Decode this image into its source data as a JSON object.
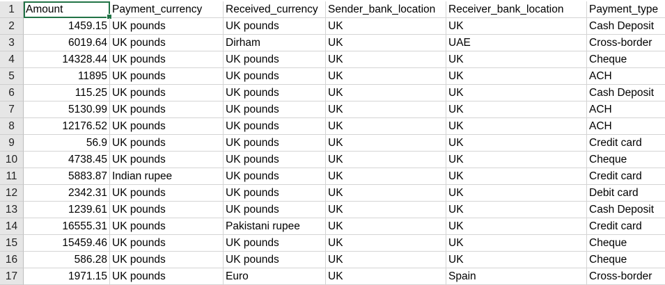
{
  "sheet": {
    "header_row_number": "1",
    "headers": [
      "Amount",
      "Payment_currency",
      "Received_currency",
      "Sender_bank_location",
      "Receiver_bank_location",
      "Payment_type"
    ],
    "rows": [
      {
        "n": "2",
        "cells": [
          "1459.15",
          "UK pounds",
          "UK pounds",
          "UK",
          "UK",
          "Cash Deposit"
        ]
      },
      {
        "n": "3",
        "cells": [
          "6019.64",
          "UK pounds",
          "Dirham",
          "UK",
          "UAE",
          "Cross-border"
        ]
      },
      {
        "n": "4",
        "cells": [
          "14328.44",
          "UK pounds",
          "UK pounds",
          "UK",
          "UK",
          "Cheque"
        ]
      },
      {
        "n": "5",
        "cells": [
          "11895",
          "UK pounds",
          "UK pounds",
          "UK",
          "UK",
          "ACH"
        ]
      },
      {
        "n": "6",
        "cells": [
          "115.25",
          "UK pounds",
          "UK pounds",
          "UK",
          "UK",
          "Cash Deposit"
        ]
      },
      {
        "n": "7",
        "cells": [
          "5130.99",
          "UK pounds",
          "UK pounds",
          "UK",
          "UK",
          "ACH"
        ]
      },
      {
        "n": "8",
        "cells": [
          "12176.52",
          "UK pounds",
          "UK pounds",
          "UK",
          "UK",
          "ACH"
        ]
      },
      {
        "n": "9",
        "cells": [
          "56.9",
          "UK pounds",
          "UK pounds",
          "UK",
          "UK",
          "Credit card"
        ]
      },
      {
        "n": "10",
        "cells": [
          "4738.45",
          "UK pounds",
          "UK pounds",
          "UK",
          "UK",
          "Cheque"
        ]
      },
      {
        "n": "11",
        "cells": [
          "5883.87",
          "Indian rupee",
          "UK pounds",
          "UK",
          "UK",
          "Credit card"
        ]
      },
      {
        "n": "12",
        "cells": [
          "2342.31",
          "UK pounds",
          "UK pounds",
          "UK",
          "UK",
          "Debit card"
        ]
      },
      {
        "n": "13",
        "cells": [
          "1239.61",
          "UK pounds",
          "UK pounds",
          "UK",
          "UK",
          "Cash Deposit"
        ]
      },
      {
        "n": "14",
        "cells": [
          "16555.31",
          "UK pounds",
          "Pakistani rupee",
          "UK",
          "UK",
          "Credit card"
        ]
      },
      {
        "n": "15",
        "cells": [
          "15459.46",
          "UK pounds",
          "UK pounds",
          "UK",
          "UK",
          "Cheque"
        ]
      },
      {
        "n": "16",
        "cells": [
          "586.28",
          "UK pounds",
          "UK pounds",
          "UK",
          "UK",
          "Cheque"
        ]
      },
      {
        "n": "17",
        "cells": [
          "1971.15",
          "UK pounds",
          "Euro",
          "UK",
          "Spain",
          "Cross-border"
        ]
      }
    ]
  }
}
